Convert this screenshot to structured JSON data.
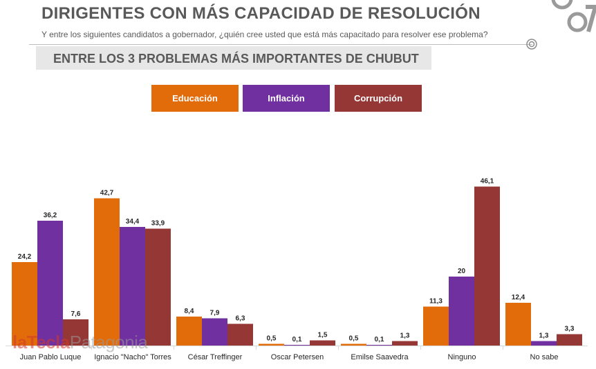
{
  "header": {
    "title": "DIRIGENTES CON MÁS CAPACIDAD DE RESOLUCIÓN",
    "subtitle": "Y entre los siguientes candidatos a gobernador, ¿quién cree usted que está más capacitado para resolver ese problema?"
  },
  "section": {
    "label": "ENTRE LOS 3 PROBLEMAS MÁS IMPORTANTES DE CHUBUT"
  },
  "watermark": {
    "part1": "laTecla",
    "part2": "Patagonia"
  },
  "colors": {
    "educacion": "#e36c0a",
    "inflacion": "#7030a0",
    "corrupcion": "#953735"
  },
  "chart_data": {
    "type": "bar",
    "categories": [
      "Juan Pablo Luque",
      "Ignacio \"Nacho\" Torres",
      "César Treffinger",
      "Oscar Petersen",
      "Emilse Saavedra",
      "Ninguno",
      "No sabe"
    ],
    "series": [
      {
        "name": "Educación",
        "color": "#e36c0a",
        "values": [
          24.2,
          42.7,
          8.4,
          0.5,
          0.5,
          11.3,
          12.4
        ]
      },
      {
        "name": "Inflación",
        "color": "#7030a0",
        "values": [
          36.2,
          34.4,
          7.9,
          0.1,
          0.1,
          20,
          1.3
        ]
      },
      {
        "name": "Corrupción",
        "color": "#953735",
        "values": [
          7.6,
          33.9,
          6.3,
          1.5,
          1.3,
          46.1,
          3.3
        ]
      }
    ],
    "value_labels": [
      [
        "24,2",
        "42,7",
        "8,4",
        "0,5",
        "0,5",
        "11,3",
        "12,4"
      ],
      [
        "36,2",
        "34,4",
        "7,9",
        "0,1",
        "0,1",
        "20",
        "1,3"
      ],
      [
        "7,6",
        "33,9",
        "6,3",
        "1,5",
        "1,3",
        "46,1",
        "3,3"
      ]
    ],
    "legend_placement": "top",
    "ylim": [
      0,
      50
    ],
    "grid": false
  }
}
